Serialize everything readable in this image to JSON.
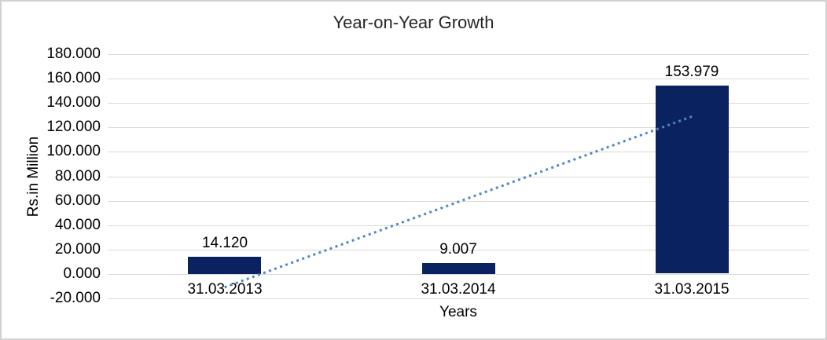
{
  "window": {
    "background": "#ffffff",
    "border_color": "#d2d2d2"
  },
  "chart_data": {
    "type": "bar",
    "title": "Year-on-Year Growth",
    "xlabel": "Years",
    "ylabel": "Rs.in Million",
    "categories": [
      "31.03.2013",
      "31.03.2014",
      "31.03.2015"
    ],
    "values": [
      14.12,
      9.007,
      153.979
    ],
    "data_labels": [
      "14.120",
      "9.007",
      "153.979"
    ],
    "ylim": [
      -20,
      180
    ],
    "ytick_step": 20,
    "ytick_labels": [
      "180.000",
      "160.000",
      "140.000",
      "120.000",
      "100.000",
      "80.000",
      "60.000",
      "40.000",
      "20.000",
      "0.000",
      "-20.000"
    ],
    "grid": true,
    "legend": "none",
    "bar_color": "#0b2261",
    "gridline_color": "#d9d9d9",
    "text_color": "#000000",
    "title_color": "#262626",
    "trendline": {
      "type": "linear",
      "style": "dotted",
      "color": "#4f86c6",
      "start_category_index": 0,
      "end_category_index": 2,
      "start_value": -10.9,
      "end_value": 129.0
    }
  }
}
